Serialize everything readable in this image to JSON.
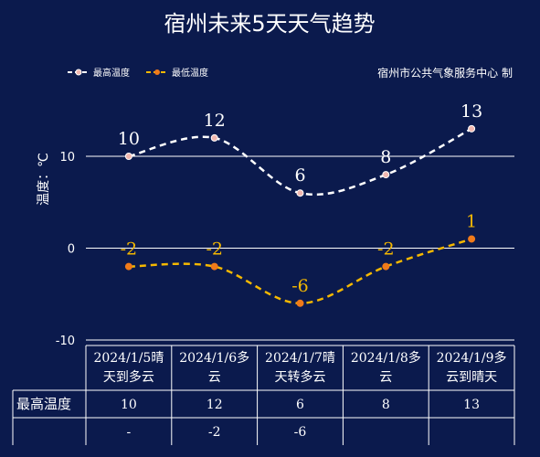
{
  "title": "宿州未来5天天气趋势",
  "credit": "宿州市公共气象服务中心  制",
  "legend": {
    "high_label": "最高温度",
    "low_label": "最低温度"
  },
  "colors": {
    "background": "#0b1a4d",
    "high_series": "#ffffff",
    "high_marker": "#f2b8b0",
    "low_series": "#f5b800",
    "low_marker": "#f07a1a",
    "grid": "#ffffff"
  },
  "table": {
    "row_header": "最高温度",
    "columns": [
      "2024/1/5晴天到多云",
      "2024/1/6多云",
      "2024/1/7晴天转多云",
      "2024/1/8多云",
      "2024/1/9多云到晴天"
    ],
    "column_lines": [
      [
        "2024/1/5晴",
        "天到多云"
      ],
      [
        "2024/1/6多",
        "云"
      ],
      [
        "2024/1/7晴",
        "天转多云"
      ],
      [
        "2024/1/8多",
        "云"
      ],
      [
        "2024/1/9多",
        "云到晴天"
      ]
    ],
    "high_values": [
      "10",
      "12",
      "6",
      "8",
      "13"
    ],
    "low_values": [
      "-",
      "-2",
      "-6",
      "",
      ""
    ]
  },
  "chart_data": {
    "type": "line",
    "categories": [
      "2024/1/5晴天到多云",
      "2024/1/6多云",
      "2024/1/7晴天转多云",
      "2024/1/8多云",
      "2024/1/9多云到晴天"
    ],
    "series": [
      {
        "name": "最高温度",
        "values": [
          10,
          12,
          6,
          8,
          13
        ]
      },
      {
        "name": "最低温度",
        "values": [
          -2,
          -2,
          -6,
          -2,
          1
        ]
      }
    ],
    "ylabel": "温度：℃",
    "ylim": [
      -10,
      10
    ],
    "yticks": [
      10,
      0,
      -10
    ],
    "grid": true,
    "smooth": true,
    "line_style": "dashed",
    "legend_position": "top-left"
  }
}
